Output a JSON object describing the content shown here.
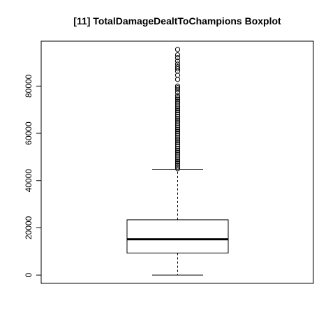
{
  "chart_data": {
    "type": "boxplot",
    "title": "[11] TotalDamageDealtToChampions Boxplot",
    "xlabel": "",
    "ylabel": "",
    "ylim": [
      -3500,
      99000
    ],
    "y_ticks": [
      0,
      20000,
      40000,
      60000,
      80000
    ],
    "y_tick_labels": [
      "0",
      "20000",
      "40000",
      "60000",
      "80000"
    ],
    "grid": false,
    "series": [
      {
        "min": 0,
        "q1": 9300,
        "median": 15200,
        "q3": 23400,
        "whisker_low": 0,
        "whisker_high": 44800,
        "outliers": [
          45000,
          45800,
          46500,
          47300,
          48000,
          48800,
          49600,
          50400,
          51200,
          52000,
          52800,
          53600,
          54400,
          55200,
          56000,
          56800,
          57600,
          58400,
          59200,
          60000,
          60800,
          61600,
          62400,
          63200,
          64000,
          64800,
          65600,
          66400,
          67200,
          68000,
          68800,
          69600,
          70400,
          71200,
          72000,
          72800,
          73600,
          74400,
          75100,
          76000,
          77300,
          78400,
          79300,
          80000,
          82800,
          84600,
          86300,
          87300,
          88200,
          89300,
          90600,
          92000,
          93200,
          95500
        ]
      }
    ]
  }
}
